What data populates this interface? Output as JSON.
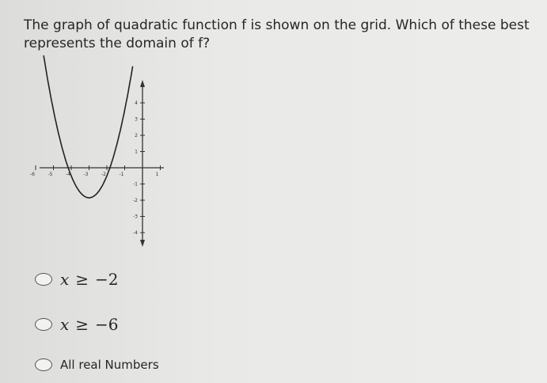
{
  "question": {
    "line1": "The graph of quadratic function f is shown on the grid.  Which of these best",
    "line2": "represents the domain of f?"
  },
  "graph": {
    "x_tick_labels": [
      "-6",
      "-5",
      "-4",
      "-3",
      "-2",
      "-1",
      "1"
    ],
    "y_tick_labels": [
      "4",
      "3",
      "2",
      "1",
      "-1",
      "-2",
      "-3",
      "-4"
    ]
  },
  "options": [
    {
      "var": "x",
      "rel": "≥",
      "num": "−2"
    },
    {
      "var": "x",
      "rel": "≥",
      "num": "−6"
    },
    {
      "text": "All real Numbers"
    }
  ]
}
